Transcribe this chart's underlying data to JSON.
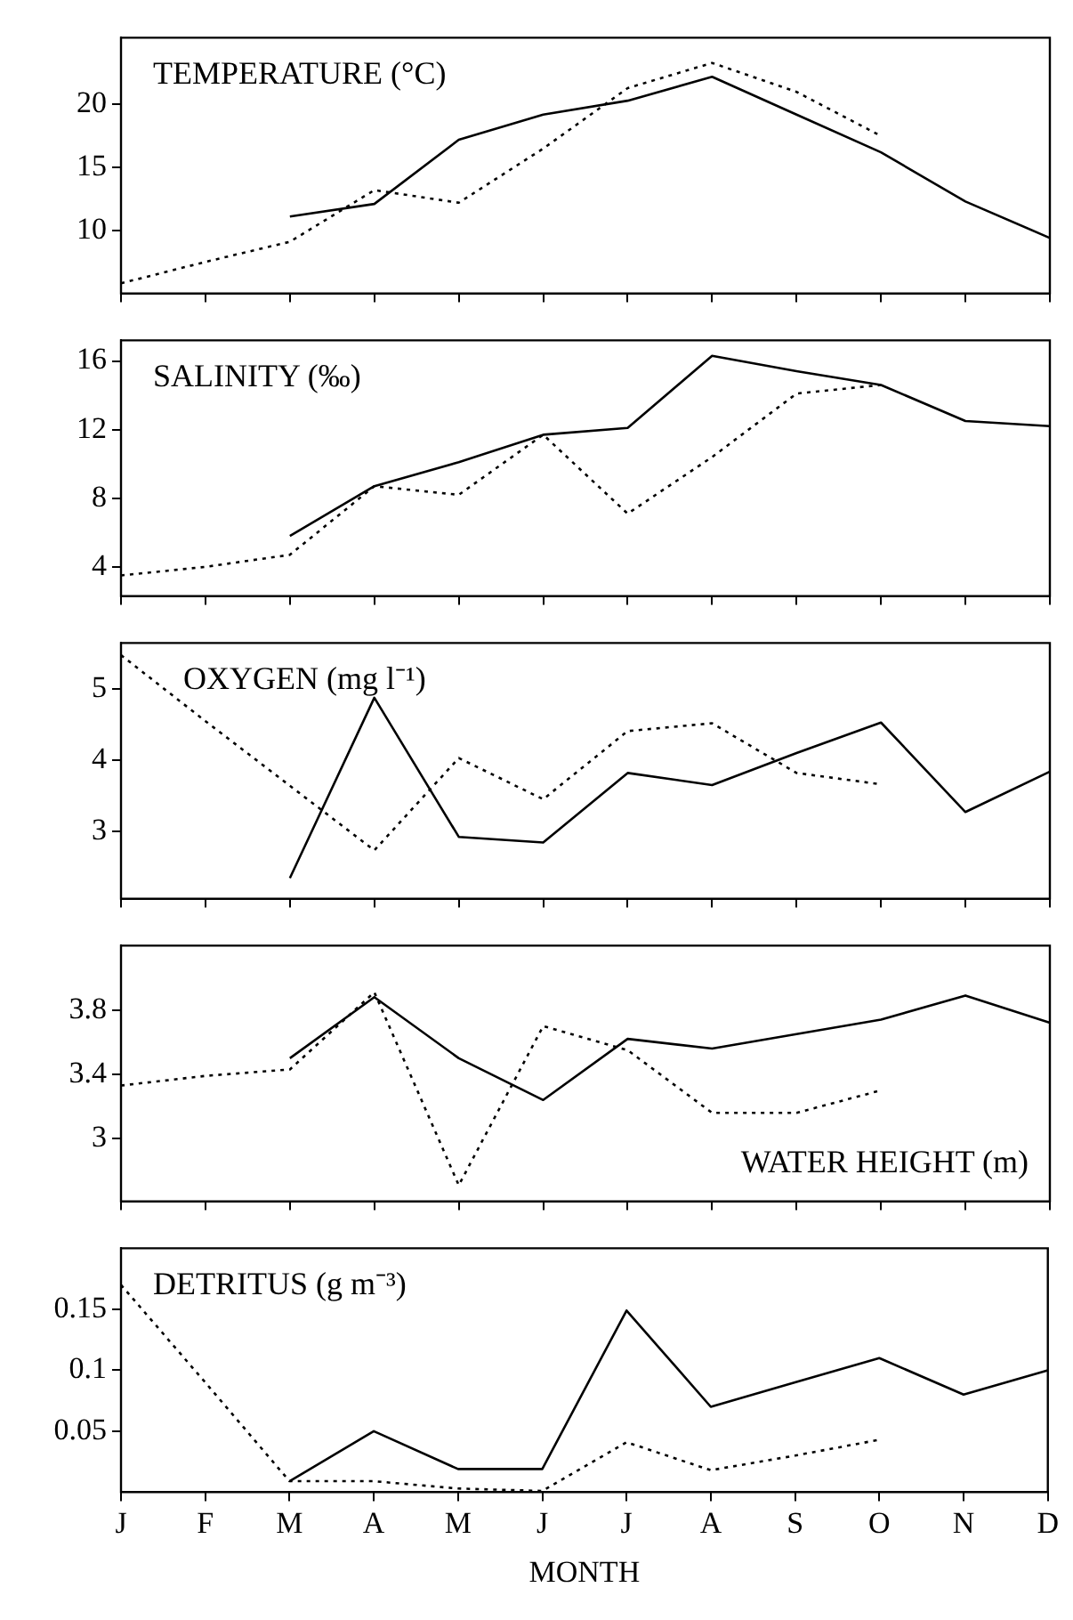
{
  "chart_data": [
    {
      "type": "line",
      "title": "TEMPERATURE (°C)",
      "categories": [
        null,
        null,
        null,
        null,
        null,
        null,
        null,
        null,
        null,
        null,
        null,
        null
      ],
      "ylim": [
        5,
        25.3
      ],
      "yticks": [
        10,
        15,
        20
      ],
      "tick_labels": "y",
      "grid": false,
      "legend": false,
      "series": [
        {
          "color": "#000000",
          "line_style": "solid",
          "values": [
            null,
            null,
            11.1,
            12.1,
            17.2,
            19.2,
            20.3,
            22.2,
            19.2,
            16.2,
            12.3,
            9.4
          ]
        },
        {
          "color": "#000000",
          "line_style": "dotted",
          "values": [
            5.8,
            7.5,
            9.1,
            13.2,
            12.2,
            16.5,
            21.3,
            23.3,
            21.0,
            17.5,
            null,
            null
          ]
        }
      ]
    },
    {
      "type": "line",
      "title": "SALINITY (‰)",
      "categories": [
        null,
        null,
        null,
        null,
        null,
        null,
        null,
        null,
        null,
        null,
        null,
        null
      ],
      "ylim": [
        2.3,
        17.2
      ],
      "yticks": [
        4,
        8,
        12,
        16
      ],
      "tick_labels": "y",
      "grid": false,
      "legend": false,
      "series": [
        {
          "color": "#000000",
          "line_style": "solid",
          "values": [
            null,
            null,
            5.8,
            8.7,
            10.1,
            11.7,
            12.1,
            16.3,
            15.4,
            14.6,
            12.5,
            12.2
          ]
        },
        {
          "color": "#000000",
          "line_style": "dotted",
          "values": [
            3.5,
            4.0,
            4.7,
            8.7,
            8.2,
            11.7,
            7.1,
            10.4,
            14.1,
            14.6,
            null,
            null
          ]
        }
      ]
    },
    {
      "type": "line",
      "title": "OXYGEN (mg l⁻¹)",
      "categories": [
        null,
        null,
        null,
        null,
        null,
        null,
        null,
        null,
        null,
        null,
        null,
        null
      ],
      "ylim": [
        2.05,
        5.65
      ],
      "yticks": [
        3,
        4,
        5
      ],
      "tick_labels": "y",
      "grid": false,
      "legend": false,
      "series": [
        {
          "color": "#000000",
          "line_style": "solid",
          "values": [
            null,
            null,
            2.34,
            4.88,
            2.92,
            2.84,
            3.82,
            3.65,
            4.1,
            4.53,
            3.27,
            3.84
          ]
        },
        {
          "color": "#000000",
          "line_style": "dotted",
          "values": [
            5.48,
            4.55,
            3.64,
            2.73,
            4.03,
            3.45,
            4.41,
            4.52,
            3.82,
            3.66,
            null,
            null
          ]
        }
      ]
    },
    {
      "type": "line",
      "title": "WATER HEIGHT (m)",
      "categories": [
        null,
        null,
        null,
        null,
        null,
        null,
        null,
        null,
        null,
        null,
        null,
        null
      ],
      "ylim": [
        2.61,
        4.2
      ],
      "yticks": [
        3,
        3.4,
        3.8
      ],
      "tick_labels": "y",
      "grid": false,
      "legend": false,
      "series": [
        {
          "color": "#000000",
          "line_style": "solid",
          "values": [
            null,
            null,
            3.5,
            3.88,
            3.5,
            3.24,
            3.62,
            3.56,
            3.65,
            3.74,
            3.89,
            3.72
          ]
        },
        {
          "color": "#000000",
          "line_style": "dotted",
          "values": [
            3.33,
            3.39,
            3.43,
            3.91,
            2.71,
            3.7,
            3.55,
            3.16,
            3.16,
            3.3,
            null,
            null
          ]
        }
      ]
    },
    {
      "type": "line",
      "title": "DETRITUS (g m⁻³)",
      "xlabel": "MONTH",
      "categories": [
        "J",
        "F",
        "M",
        "A",
        "M",
        "J",
        "J",
        "A",
        "S",
        "O",
        "N",
        "D"
      ],
      "ylim": [
        0,
        0.2
      ],
      "yticks": [
        0.05,
        0.1,
        0.15
      ],
      "grid": false,
      "legend": false,
      "series": [
        {
          "color": "#000000",
          "line_style": "solid",
          "values": [
            null,
            null,
            0.009,
            0.05,
            0.019,
            0.019,
            0.149,
            0.07,
            0.09,
            0.11,
            0.08,
            0.1
          ]
        },
        {
          "color": "#000000",
          "line_style": "dotted",
          "values": [
            0.17,
            0.09,
            0.009,
            0.009,
            0.003,
            0.001,
            0.041,
            0.018,
            0.03,
            0.043,
            null,
            null
          ]
        }
      ]
    }
  ]
}
